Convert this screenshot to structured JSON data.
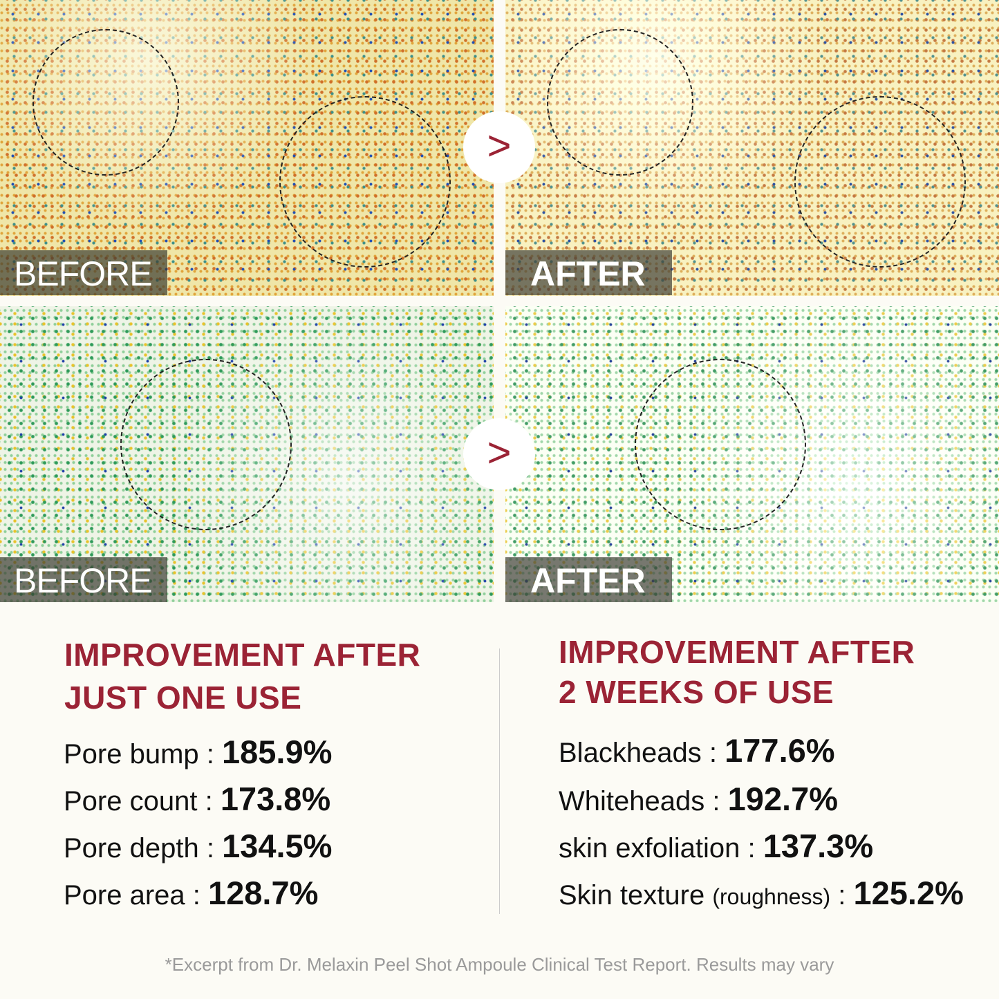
{
  "panels": {
    "top_before_label": "BEFORE",
    "top_after_label": "AFTER",
    "bottom_before_label": "BEFORE",
    "bottom_after_label": "AFTER",
    "arrow_glyph": ">"
  },
  "left": {
    "heading_line1": "IMPROVEMENT AFTER",
    "heading_line2": "JUST ONE USE",
    "stats": [
      {
        "label": "Pore bump :",
        "value": "185.9%"
      },
      {
        "label": "Pore count :",
        "value": "173.8%"
      },
      {
        "label": "Pore depth :",
        "value": "134.5%"
      },
      {
        "label": "Pore area :",
        "value": "128.7%"
      }
    ]
  },
  "right": {
    "heading_line1": "IMPROVEMENT AFTER",
    "heading_line2": "2 WEEKS OF USE",
    "stats": [
      {
        "label": "Blackheads :",
        "value": "177.6%"
      },
      {
        "label": "Whiteheads :",
        "value": "192.7%"
      },
      {
        "label": "skin exfoliation :",
        "value": "137.3%"
      },
      {
        "label": "Skin texture",
        "note": "(roughness)",
        "sep": ":",
        "value": "125.2%"
      }
    ]
  },
  "footnote": "*Excerpt from Dr. Melaxin Peel Shot Ampoule Clinical Test Report. Results may vary",
  "colors": {
    "accent": "#9b2335",
    "background": "#fcfbf5"
  }
}
